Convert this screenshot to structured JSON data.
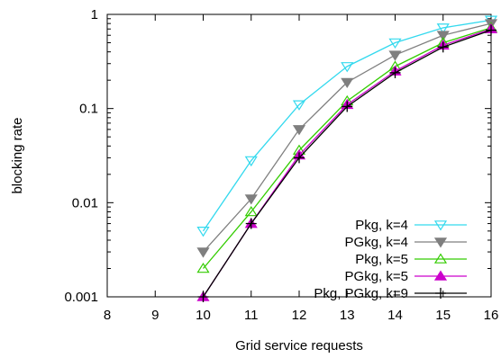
{
  "chart_data": {
    "type": "line",
    "title": "",
    "xlabel": "Grid service requests",
    "ylabel": "blocking rate",
    "xlim": [
      8,
      16
    ],
    "ylim": [
      0.001,
      1
    ],
    "yscale": "log",
    "grid": false,
    "legend_position": "bottom-right",
    "x_ticks": [
      8,
      9,
      10,
      11,
      12,
      13,
      14,
      15,
      16
    ],
    "x_tick_labels": [
      "8",
      "9",
      "10",
      "11",
      "12",
      "13",
      "14",
      "15",
      "16"
    ],
    "y_ticks": [
      0.001,
      0.01,
      0.1,
      1
    ],
    "y_tick_labels": [
      "0.001",
      "0.01",
      "0.1",
      "1"
    ],
    "series": [
      {
        "name": "Pkg, k=4",
        "color": "#33d9ee",
        "marker": "triangle-down-open",
        "x": [
          10,
          11,
          12,
          13,
          14,
          15,
          16
        ],
        "y": [
          0.005,
          0.028,
          0.11,
          0.28,
          0.5,
          0.72,
          0.87
        ]
      },
      {
        "name": "PGkg, k=4",
        "color": "#7f7f7f",
        "marker": "triangle-down-filled",
        "x": [
          10,
          11,
          12,
          13,
          14,
          15,
          16
        ],
        "y": [
          0.003,
          0.011,
          0.06,
          0.19,
          0.37,
          0.6,
          0.8
        ]
      },
      {
        "name": "Pkg, k=5",
        "color": "#33cc00",
        "marker": "triangle-up-open",
        "x": [
          10,
          11,
          12,
          13,
          14,
          15,
          16
        ],
        "y": [
          0.002,
          0.008,
          0.036,
          0.12,
          0.28,
          0.5,
          0.72
        ]
      },
      {
        "name": "PGkg, k=5",
        "color": "#cc00cc",
        "marker": "triangle-up-filled",
        "x": [
          10,
          11,
          12,
          13,
          14,
          15,
          16
        ],
        "y": [
          0.001,
          0.006,
          0.032,
          0.11,
          0.25,
          0.47,
          0.7
        ]
      },
      {
        "name": "Pkg, PGkg, k=9",
        "color": "#000000",
        "marker": "plus",
        "x": [
          10,
          11,
          12,
          13,
          14,
          15,
          16
        ],
        "y": [
          0.001,
          0.006,
          0.03,
          0.105,
          0.24,
          0.45,
          0.68
        ]
      }
    ]
  }
}
